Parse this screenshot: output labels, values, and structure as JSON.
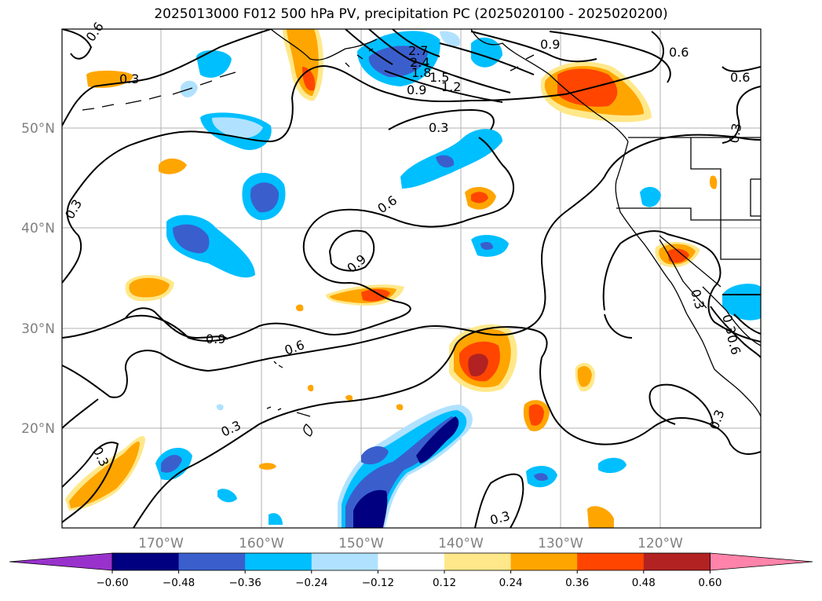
{
  "title": "2025013000 F012 500 hPa PV, precipitation PC (2025020100 - 2025020200)",
  "map": {
    "lon_labels": [
      "170°W",
      "160°W",
      "150°W",
      "140°W",
      "130°W",
      "120°W"
    ],
    "lat_labels": [
      "50°N",
      "40°N",
      "30°N",
      "20°N"
    ],
    "contour_labels": [
      "0.6",
      "0.3",
      "2.7",
      "2.4",
      "1.8",
      "1.5",
      "1.2",
      "0.9",
      "0.9",
      "0.6",
      "0.6",
      "0.3",
      "0.3",
      "0.3",
      "0.6",
      "0.9",
      "0.3",
      "0.9",
      "0.6",
      "0.3",
      "0.3",
      "0.3",
      "0.3",
      "0.3",
      "0.6"
    ]
  },
  "colorbar": {
    "labels": [
      "−0.60",
      "−0.48",
      "−0.36",
      "−0.24",
      "−0.12",
      "0.12",
      "0.24",
      "0.36",
      "0.48",
      "0.60"
    ],
    "colors": [
      "#9932cc",
      "#000080",
      "#3a5fcd",
      "#00bfff",
      "#b0e2ff",
      "#ffffff",
      "#ffe88a",
      "#ffa500",
      "#ff4500",
      "#b22222",
      "#ff83aa"
    ]
  }
}
